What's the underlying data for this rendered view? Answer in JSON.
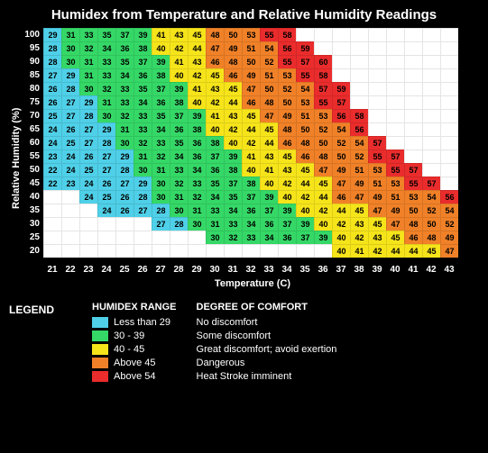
{
  "title": "Humidex from Temperature and Relative Humidity Readings",
  "ylabel": "Relative Humidity (%)",
  "xlabel": "Temperature (C)",
  "colors": {
    "c1": "#4fd0e8",
    "c2": "#35d867",
    "c3": "#f6e41b",
    "c4": "#f08128",
    "c5": "#ea2c2c",
    "white": "#ffffff",
    "black": "#000000"
  },
  "humidity": [
    100,
    95,
    90,
    85,
    80,
    75,
    70,
    65,
    60,
    55,
    50,
    45,
    40,
    35,
    30,
    25,
    20
  ],
  "temperature": [
    21,
    22,
    23,
    24,
    25,
    26,
    27,
    28,
    29,
    30,
    31,
    32,
    33,
    34,
    35,
    36,
    37,
    38,
    39,
    40,
    41,
    42,
    43
  ],
  "grid": [
    [
      29,
      31,
      33,
      35,
      37,
      39,
      41,
      43,
      45,
      48,
      50,
      53,
      55,
      58,
      null,
      null,
      null,
      null,
      null,
      null,
      null,
      null,
      null
    ],
    [
      28,
      30,
      32,
      34,
      36,
      38,
      40,
      42,
      44,
      47,
      49,
      51,
      54,
      56,
      59,
      null,
      null,
      null,
      null,
      null,
      null,
      null,
      null
    ],
    [
      28,
      30,
      31,
      33,
      35,
      37,
      39,
      41,
      43,
      46,
      48,
      50,
      52,
      55,
      57,
      60,
      null,
      null,
      null,
      null,
      null,
      null,
      null
    ],
    [
      27,
      29,
      31,
      33,
      34,
      36,
      38,
      40,
      42,
      45,
      46,
      49,
      51,
      53,
      55,
      58,
      null,
      null,
      null,
      null,
      null,
      null,
      null
    ],
    [
      26,
      28,
      30,
      32,
      33,
      35,
      37,
      39,
      41,
      43,
      45,
      47,
      50,
      52,
      54,
      57,
      59,
      null,
      null,
      null,
      null,
      null,
      null
    ],
    [
      26,
      27,
      29,
      31,
      33,
      34,
      36,
      38,
      40,
      42,
      44,
      46,
      48,
      50,
      53,
      55,
      57,
      null,
      null,
      null,
      null,
      null,
      null
    ],
    [
      25,
      27,
      28,
      30,
      32,
      33,
      35,
      37,
      39,
      41,
      43,
      45,
      47,
      49,
      51,
      53,
      56,
      58,
      null,
      null,
      null,
      null,
      null
    ],
    [
      24,
      26,
      27,
      29,
      31,
      33,
      34,
      36,
      38,
      40,
      42,
      44,
      45,
      48,
      50,
      52,
      54,
      56,
      null,
      null,
      null,
      null,
      null
    ],
    [
      24,
      25,
      27,
      28,
      30,
      32,
      33,
      35,
      36,
      38,
      40,
      42,
      44,
      46,
      48,
      50,
      52,
      54,
      57,
      null,
      null,
      null,
      null
    ],
    [
      23,
      24,
      26,
      27,
      29,
      31,
      32,
      34,
      36,
      37,
      39,
      41,
      43,
      45,
      46,
      48,
      50,
      52,
      55,
      57,
      null,
      null,
      null
    ],
    [
      22,
      24,
      25,
      27,
      28,
      30,
      31,
      33,
      34,
      36,
      38,
      40,
      41,
      43,
      45,
      47,
      49,
      51,
      53,
      55,
      57,
      null,
      null
    ],
    [
      22,
      23,
      24,
      26,
      27,
      29,
      30,
      32,
      33,
      35,
      37,
      38,
      40,
      42,
      44,
      45,
      47,
      49,
      51,
      53,
      55,
      57,
      null
    ],
    [
      null,
      null,
      24,
      25,
      26,
      28,
      30,
      31,
      32,
      34,
      35,
      37,
      39,
      40,
      42,
      44,
      46,
      47,
      49,
      51,
      53,
      54,
      56
    ],
    [
      null,
      null,
      null,
      24,
      26,
      27,
      28,
      30,
      31,
      33,
      34,
      36,
      37,
      39,
      40,
      42,
      44,
      45,
      47,
      49,
      50,
      52,
      54
    ],
    [
      null,
      null,
      null,
      null,
      null,
      null,
      27,
      28,
      30,
      31,
      33,
      34,
      36,
      37,
      39,
      40,
      42,
      43,
      45,
      47,
      48,
      50,
      52
    ],
    [
      null,
      null,
      null,
      null,
      null,
      null,
      null,
      null,
      null,
      30,
      32,
      33,
      34,
      36,
      37,
      39,
      40,
      42,
      43,
      45,
      46,
      48,
      49
    ],
    [
      null,
      null,
      null,
      null,
      null,
      null,
      null,
      null,
      null,
      null,
      null,
      null,
      null,
      null,
      null,
      null,
      40,
      41,
      42,
      44,
      44,
      45,
      47
    ]
  ],
  "legend": {
    "title": "LEGEND",
    "range_head": "HUMIDEX RANGE",
    "comfort_head": "DEGREE OF COMFORT",
    "items": [
      {
        "range": "Less than 29",
        "comfort": "No discomfort",
        "color": "#4fd0e8"
      },
      {
        "range": "30 - 39",
        "comfort": "Some discomfort",
        "color": "#35d867"
      },
      {
        "range": "40 - 45",
        "comfort": "Great discomfort; avoid exertion",
        "color": "#f6e41b"
      },
      {
        "range": "Above 45",
        "comfort": "Dangerous",
        "color": "#f08128"
      },
      {
        "range": "Above 54",
        "comfort": "Heat Stroke imminent",
        "color": "#ea2c2c"
      }
    ]
  }
}
